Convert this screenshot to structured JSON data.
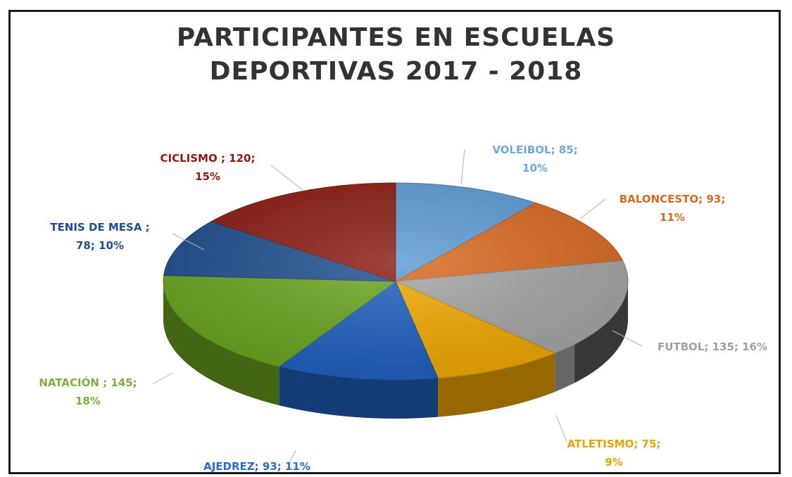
{
  "chart_data": {
    "type": "pie",
    "title": [
      "PARTICIPANTES EN ESCUELAS",
      "DEPORTIVAS 2017 - 2018"
    ],
    "slices": [
      {
        "name": "VOLEIBOL",
        "value": 85,
        "percent": "10%",
        "color": "#5b9bd5",
        "label_lines": [
          "VOLEIBOL; 85;",
          "10%"
        ]
      },
      {
        "name": "BALONCESTO",
        "value": 93,
        "percent": "11%",
        "color": "#d9691f",
        "label_lines": [
          "BALONCESTO; 93;",
          "11%"
        ]
      },
      {
        "name": "FUTBOL",
        "value": 135,
        "percent": "16%",
        "color": "#a5a5a5",
        "label_lines": [
          "FUTBOL; 135; 16%"
        ]
      },
      {
        "name": "ATLETISMO",
        "value": 75,
        "percent": "9%",
        "color": "#f2a900",
        "label_lines": [
          "ATLETISMO; 75;",
          "9%"
        ]
      },
      {
        "name": "AJEDREZ",
        "value": 93,
        "percent": "11%",
        "color": "#1f5fbf",
        "label_lines": [
          "AJEDREZ; 93; 11%"
        ]
      },
      {
        "name": "NATACIÓN",
        "value": 145,
        "percent": "18%",
        "color": "#6aa51f",
        "label_lines": [
          "NATACIÓN ; 145;",
          "18%"
        ]
      },
      {
        "name": "TENIS DE MESA",
        "value": 78,
        "percent": "10%",
        "color": "#1e4f8f",
        "label_lines": [
          "TENIS DE MESA ;",
          "78; 10%"
        ]
      },
      {
        "name": "CICLISMO",
        "value": 120,
        "percent": "15%",
        "color": "#8b1a12",
        "label_lines": [
          "CICLISMO ; 120;",
          "15%"
        ]
      }
    ],
    "label_colors": {
      "VOLEIBOL": "#6fa8dc",
      "BALONCESTO": "#d9691f",
      "FUTBOL": "#a0a0a0",
      "ATLETISMO": "#e6a400",
      "AJEDREZ": "#2a6acb",
      "NATACIÓN": "#7cb03a",
      "TENIS DE MESA": "#1e4f8f",
      "CICLISMO": "#8b1a12"
    }
  }
}
